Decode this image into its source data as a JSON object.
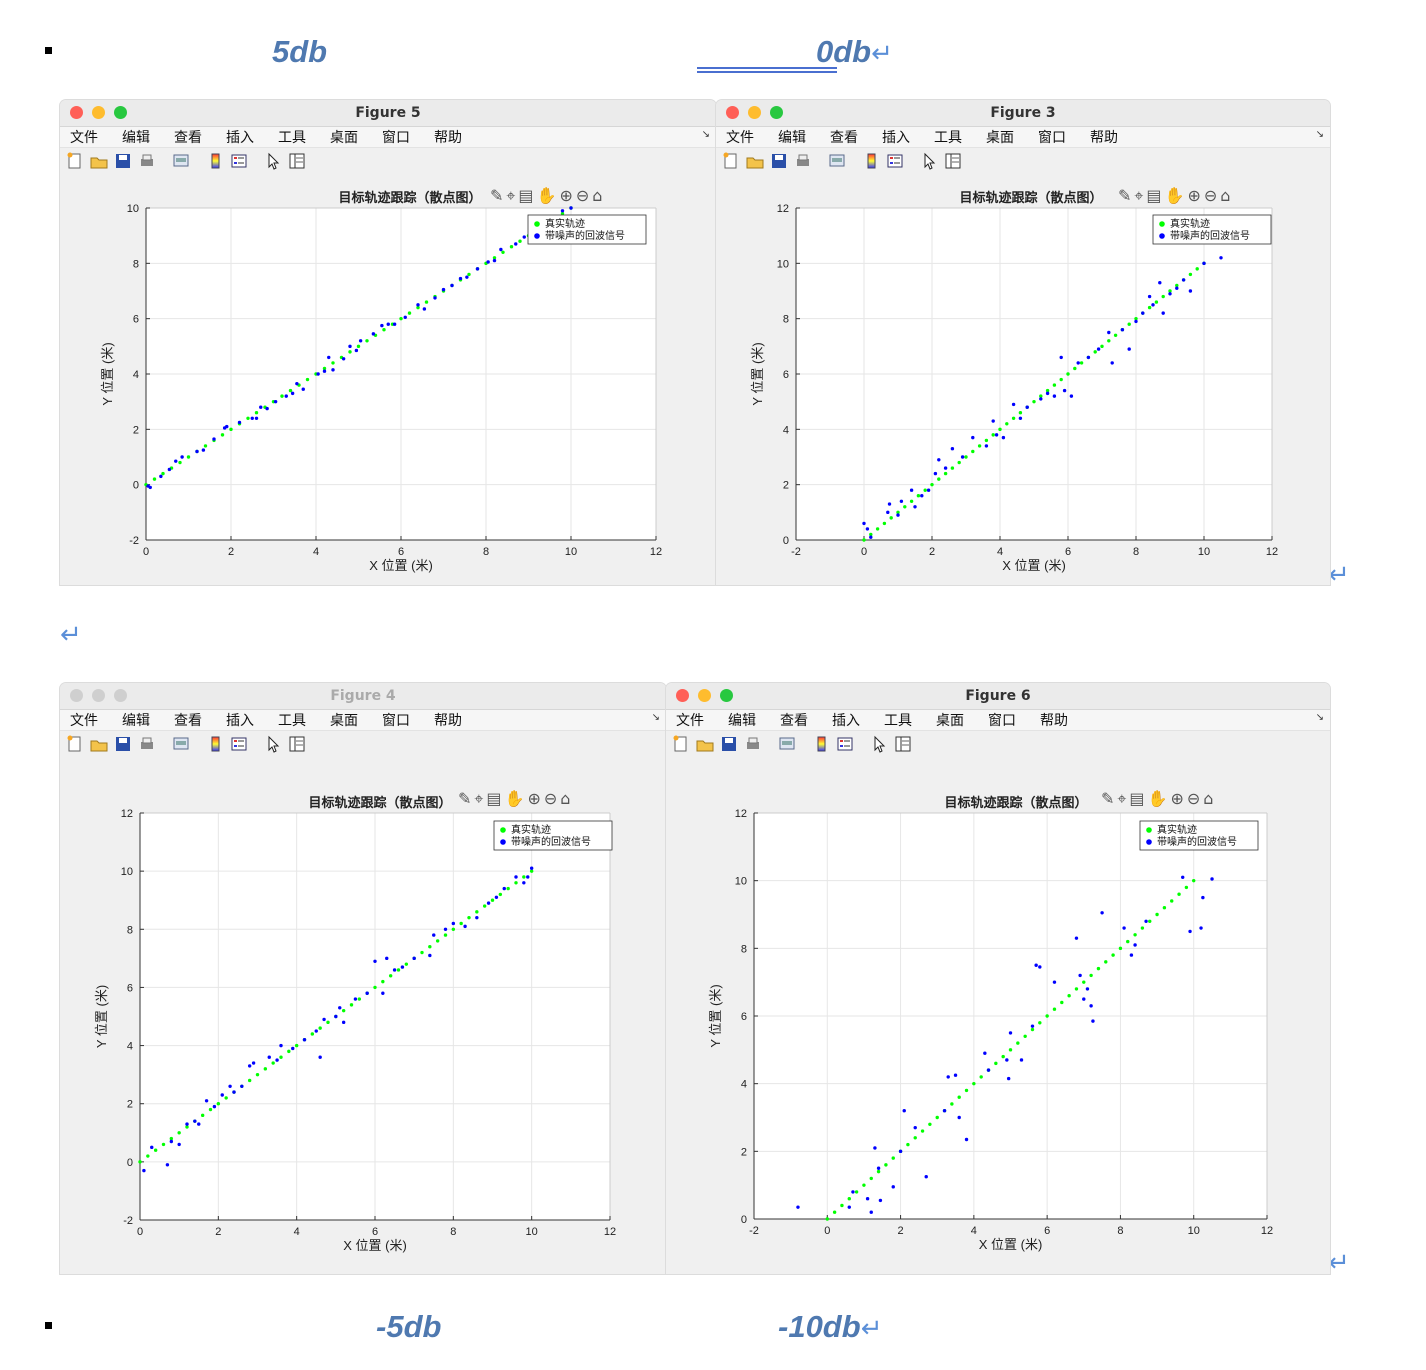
{
  "captions": {
    "top_left": "5db",
    "top_right": "0db",
    "bottom_left": "-5db",
    "bottom_right": "-10db"
  },
  "return_mark": "↵",
  "menu": [
    "文件",
    "编辑",
    "查看",
    "插入",
    "工具",
    "桌面",
    "窗口",
    "帮助"
  ],
  "colors": {
    "true_track": "#00ff00",
    "noisy": "#0000ff",
    "caption": "#4f79b0"
  },
  "figures": [
    {
      "id": "f5",
      "window_title": "Figure 5",
      "active": true
    },
    {
      "id": "f3",
      "window_title": "Figure 3",
      "active": true
    },
    {
      "id": "f4",
      "window_title": "Figure 4",
      "active": false
    },
    {
      "id": "f6",
      "window_title": "Figure 6",
      "active": true
    }
  ],
  "chart_data": [
    {
      "type": "scatter",
      "window": "Figure 5",
      "title": "目标轨迹跟踪（散点图）",
      "xlabel": "X 位置 (米)",
      "ylabel": "Y 位置 (米)",
      "xlim": [
        0,
        12
      ],
      "ylim": [
        -2,
        10
      ],
      "xticks": [
        0,
        2,
        4,
        6,
        8,
        10,
        12
      ],
      "yticks": [
        -2,
        0,
        2,
        4,
        6,
        8,
        10
      ],
      "grid": true,
      "legend_position": "top-right",
      "series": [
        {
          "name": "真实轨迹",
          "color": "#00ff00",
          "x_range": [
            0,
            10
          ],
          "points": 51
        },
        {
          "name": "带噪声的回波信号",
          "color": "#0000ff",
          "points": [
            [
              0.05,
              -0.05
            ],
            [
              0.1,
              -0.1
            ],
            [
              0.35,
              0.3
            ],
            [
              0.55,
              0.55
            ],
            [
              0.7,
              0.85
            ],
            [
              0.85,
              1.0
            ],
            [
              1.2,
              1.2
            ],
            [
              1.35,
              1.25
            ],
            [
              1.6,
              1.65
            ],
            [
              1.85,
              2.05
            ],
            [
              1.9,
              2.1
            ],
            [
              2.2,
              2.25
            ],
            [
              2.5,
              2.4
            ],
            [
              2.6,
              2.4
            ],
            [
              2.7,
              2.8
            ],
            [
              2.85,
              2.75
            ],
            [
              3.05,
              3.0
            ],
            [
              3.3,
              3.2
            ],
            [
              3.45,
              3.3
            ],
            [
              3.55,
              3.65
            ],
            [
              3.7,
              3.45
            ],
            [
              4.05,
              4.0
            ],
            [
              4.2,
              4.1
            ],
            [
              4.3,
              4.6
            ],
            [
              4.4,
              4.15
            ],
            [
              4.65,
              4.55
            ],
            [
              4.8,
              5.0
            ],
            [
              4.95,
              4.85
            ],
            [
              5.05,
              5.2
            ],
            [
              5.35,
              5.45
            ],
            [
              5.55,
              5.75
            ],
            [
              5.7,
              5.8
            ],
            [
              5.85,
              5.8
            ],
            [
              6.1,
              6.05
            ],
            [
              6.4,
              6.5
            ],
            [
              6.55,
              6.35
            ],
            [
              6.8,
              6.75
            ],
            [
              7.0,
              7.05
            ],
            [
              7.2,
              7.2
            ],
            [
              7.4,
              7.45
            ],
            [
              7.55,
              7.5
            ],
            [
              7.8,
              7.8
            ],
            [
              8.05,
              8.05
            ],
            [
              8.2,
              8.1
            ],
            [
              8.35,
              8.5
            ],
            [
              8.7,
              8.7
            ],
            [
              8.9,
              8.95
            ],
            [
              9.3,
              9.25
            ],
            [
              9.5,
              9.55
            ],
            [
              9.8,
              9.9
            ],
            [
              10.0,
              10.0
            ]
          ]
        }
      ]
    },
    {
      "type": "scatter",
      "window": "Figure 3",
      "title": "目标轨迹跟踪（散点图）",
      "xlabel": "X 位置 (米)",
      "ylabel": "Y 位置 (米)",
      "xlim": [
        -2,
        12
      ],
      "ylim": [
        0,
        12
      ],
      "xticks": [
        -2,
        0,
        2,
        4,
        6,
        8,
        10,
        12
      ],
      "yticks": [
        0,
        2,
        4,
        6,
        8,
        10,
        12
      ],
      "grid": true,
      "legend_position": "top-right",
      "series": [
        {
          "name": "真实轨迹",
          "color": "#00ff00",
          "x_range": [
            0,
            10
          ],
          "points": 51
        },
        {
          "name": "带噪声的回波信号",
          "color": "#0000ff",
          "points": [
            [
              0.0,
              0.6
            ],
            [
              0.1,
              0.4
            ],
            [
              0.2,
              0.1
            ],
            [
              0.7,
              1.0
            ],
            [
              0.75,
              1.3
            ],
            [
              1.0,
              0.9
            ],
            [
              1.1,
              1.4
            ],
            [
              1.4,
              1.8
            ],
            [
              1.5,
              1.2
            ],
            [
              1.7,
              1.6
            ],
            [
              1.9,
              1.8
            ],
            [
              2.1,
              2.4
            ],
            [
              2.2,
              2.9
            ],
            [
              2.4,
              2.6
            ],
            [
              2.6,
              3.3
            ],
            [
              2.9,
              3.0
            ],
            [
              3.2,
              3.7
            ],
            [
              3.6,
              3.4
            ],
            [
              3.8,
              4.3
            ],
            [
              3.9,
              3.8
            ],
            [
              4.1,
              3.7
            ],
            [
              4.4,
              4.9
            ],
            [
              4.6,
              4.4
            ],
            [
              4.8,
              4.8
            ],
            [
              5.2,
              5.1
            ],
            [
              5.4,
              5.3
            ],
            [
              5.6,
              5.2
            ],
            [
              5.8,
              6.6
            ],
            [
              5.9,
              5.4
            ],
            [
              6.1,
              5.2
            ],
            [
              6.3,
              6.4
            ],
            [
              6.6,
              6.6
            ],
            [
              6.9,
              6.9
            ],
            [
              7.2,
              7.5
            ],
            [
              7.3,
              6.4
            ],
            [
              7.6,
              7.6
            ],
            [
              7.8,
              6.9
            ],
            [
              8.0,
              7.9
            ],
            [
              8.2,
              8.2
            ],
            [
              8.4,
              8.8
            ],
            [
              8.5,
              8.5
            ],
            [
              8.7,
              9.3
            ],
            [
              8.8,
              8.2
            ],
            [
              9.0,
              8.9
            ],
            [
              9.2,
              9.1
            ],
            [
              9.4,
              9.4
            ],
            [
              9.6,
              9.0
            ],
            [
              10.0,
              10.0
            ],
            [
              10.5,
              10.2
            ]
          ]
        }
      ]
    },
    {
      "type": "scatter",
      "window": "Figure 4",
      "title": "目标轨迹跟踪（散点图）",
      "xlabel": "X 位置 (米)",
      "ylabel": "Y 位置 (米)",
      "xlim": [
        0,
        12
      ],
      "ylim": [
        -2,
        12
      ],
      "xticks": [
        0,
        2,
        4,
        6,
        8,
        10,
        12
      ],
      "yticks": [
        -2,
        0,
        2,
        4,
        6,
        8,
        10,
        12
      ],
      "grid": true,
      "legend_position": "top-right",
      "series": [
        {
          "name": "真实轨迹",
          "color": "#00ff00",
          "x_range": [
            0,
            10
          ],
          "points": 51
        },
        {
          "name": "带噪声的回波信号",
          "color": "#0000ff",
          "points": [
            [
              0.1,
              -0.3
            ],
            [
              0.3,
              0.5
            ],
            [
              0.7,
              -0.1
            ],
            [
              0.8,
              0.7
            ],
            [
              1.0,
              0.6
            ],
            [
              1.2,
              1.3
            ],
            [
              1.4,
              1.4
            ],
            [
              1.5,
              1.3
            ],
            [
              1.7,
              2.1
            ],
            [
              1.9,
              1.9
            ],
            [
              2.1,
              2.3
            ],
            [
              2.3,
              2.6
            ],
            [
              2.4,
              2.4
            ],
            [
              2.6,
              2.6
            ],
            [
              2.8,
              3.3
            ],
            [
              2.9,
              3.4
            ],
            [
              3.3,
              3.6
            ],
            [
              3.5,
              3.5
            ],
            [
              3.6,
              4.0
            ],
            [
              3.9,
              3.9
            ],
            [
              4.2,
              4.2
            ],
            [
              4.5,
              4.5
            ],
            [
              4.6,
              3.6
            ],
            [
              4.7,
              4.9
            ],
            [
              5.0,
              5.0
            ],
            [
              5.1,
              5.3
            ],
            [
              5.2,
              4.8
            ],
            [
              5.5,
              5.6
            ],
            [
              5.8,
              5.8
            ],
            [
              6.0,
              6.9
            ],
            [
              6.2,
              5.8
            ],
            [
              6.3,
              7.0
            ],
            [
              6.5,
              6.6
            ],
            [
              6.7,
              6.7
            ],
            [
              7.0,
              7.0
            ],
            [
              7.4,
              7.1
            ],
            [
              7.5,
              7.8
            ],
            [
              7.8,
              8.0
            ],
            [
              8.0,
              8.2
            ],
            [
              8.3,
              8.1
            ],
            [
              8.6,
              8.4
            ],
            [
              8.9,
              8.9
            ],
            [
              9.1,
              9.1
            ],
            [
              9.3,
              9.4
            ],
            [
              9.6,
              9.8
            ],
            [
              9.8,
              9.6
            ],
            [
              9.9,
              9.8
            ],
            [
              10.0,
              10.1
            ]
          ]
        }
      ]
    },
    {
      "type": "scatter",
      "window": "Figure 6",
      "title": "目标轨迹跟踪（散点图）",
      "xlabel": "X 位置 (米)",
      "ylabel": "Y 位置 (米)",
      "xlim": [
        -2,
        12
      ],
      "ylim": [
        0,
        12
      ],
      "xticks": [
        -2,
        0,
        2,
        4,
        6,
        8,
        10,
        12
      ],
      "yticks": [
        0,
        2,
        4,
        6,
        8,
        10,
        12
      ],
      "grid": true,
      "legend_position": "top-right",
      "series": [
        {
          "name": "真实轨迹",
          "color": "#00ff00",
          "x_range": [
            0,
            10
          ],
          "points": 51
        },
        {
          "name": "带噪声的回波信号",
          "color": "#0000ff",
          "points": [
            [
              -0.8,
              0.35
            ],
            [
              0.6,
              0.35
            ],
            [
              0.7,
              0.8
            ],
            [
              1.1,
              0.6
            ],
            [
              1.2,
              0.2
            ],
            [
              1.3,
              2.1
            ],
            [
              1.4,
              1.5
            ],
            [
              1.45,
              0.55
            ],
            [
              1.8,
              0.95
            ],
            [
              2.0,
              2.0
            ],
            [
              2.1,
              3.2
            ],
            [
              2.4,
              2.7
            ],
            [
              2.7,
              1.25
            ],
            [
              3.2,
              3.2
            ],
            [
              3.3,
              4.2
            ],
            [
              3.5,
              4.25
            ],
            [
              3.6,
              3.0
            ],
            [
              3.8,
              2.35
            ],
            [
              4.3,
              4.9
            ],
            [
              4.4,
              4.4
            ],
            [
              4.9,
              4.7
            ],
            [
              4.95,
              4.15
            ],
            [
              5.0,
              5.5
            ],
            [
              5.3,
              4.7
            ],
            [
              5.6,
              5.7
            ],
            [
              5.7,
              7.5
            ],
            [
              5.8,
              7.45
            ],
            [
              6.2,
              7.0
            ],
            [
              6.8,
              8.3
            ],
            [
              6.9,
              7.2
            ],
            [
              7.0,
              6.5
            ],
            [
              7.1,
              6.8
            ],
            [
              7.2,
              6.3
            ],
            [
              7.25,
              5.85
            ],
            [
              7.5,
              9.05
            ],
            [
              8.1,
              8.6
            ],
            [
              8.3,
              7.8
            ],
            [
              8.4,
              8.1
            ],
            [
              8.7,
              8.8
            ],
            [
              9.7,
              10.1
            ],
            [
              9.9,
              8.5
            ],
            [
              10.2,
              8.6
            ],
            [
              10.25,
              9.5
            ],
            [
              10.5,
              10.05
            ]
          ]
        }
      ]
    }
  ]
}
